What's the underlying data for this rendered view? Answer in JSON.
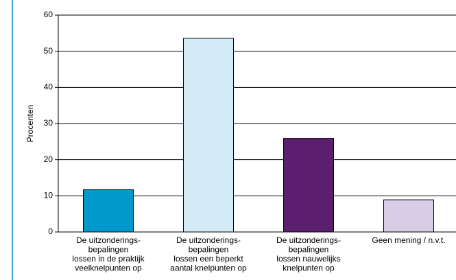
{
  "chart_data": {
    "type": "bar",
    "y_label": "Procenten",
    "categories": [
      "De uitzonderings-\nbepalingen\nlossen in de praktijk\nveelknelpunten op",
      "De uitzonderings-\nbepalingen\nlossen een beperkt\naantal knelpunten op",
      "De uitzonderings-\nbepalingen\nlossen nauwelijks\nknelpunten op",
      "Geen mening / n.v.t."
    ],
    "values": [
      11.7,
      53.6,
      25.9,
      8.9
    ],
    "colors": [
      "#0099cc",
      "#d3ebf7",
      "#5c1f6e",
      "#d9cde6"
    ],
    "ylim": [
      0,
      60
    ],
    "yticks": [
      0,
      10,
      20,
      30,
      40,
      50,
      60
    ],
    "grid": true
  }
}
